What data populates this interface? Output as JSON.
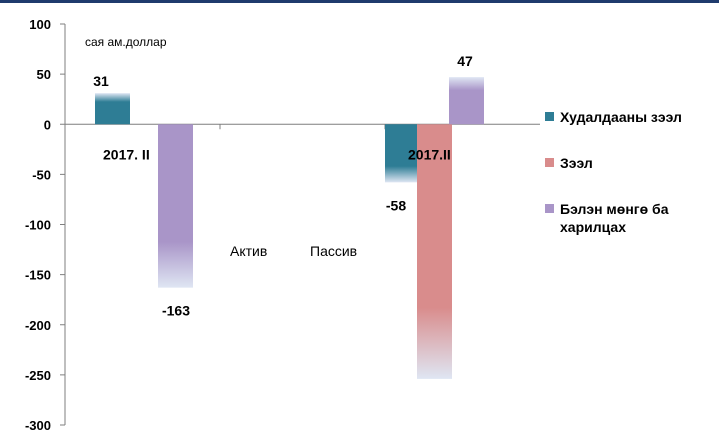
{
  "chart_data": {
    "type": "bar",
    "unit_label": "сая ам.доллар",
    "ylim": [
      -300,
      100
    ],
    "yticks": [
      "100",
      "50",
      "0",
      "-50",
      "-100",
      "-150",
      "-200",
      "-250",
      "-300"
    ],
    "categories": [
      "Актив",
      "Пассив"
    ],
    "period_labels": [
      "2017. II",
      "2017.II"
    ],
    "series": [
      {
        "name": "Худалдааны зээл",
        "color": "#2e7d95",
        "values": [
          31,
          -58
        ]
      },
      {
        "name": "Зээл",
        "color": "#d98c8c",
        "values": [
          0,
          -254
        ]
      },
      {
        "name": "Бэлэн мөнгө ба харилцах",
        "color": "#a995c8",
        "values": [
          -163,
          47
        ]
      }
    ],
    "data_labels": [
      {
        "series": 0,
        "category": 0,
        "text": "31"
      },
      {
        "series": 2,
        "category": 0,
        "text": "-163"
      },
      {
        "series": 0,
        "category": 1,
        "text": "-58"
      },
      {
        "series": 2,
        "category": 1,
        "text": "47"
      }
    ],
    "legend_position": "right",
    "grid": false
  }
}
